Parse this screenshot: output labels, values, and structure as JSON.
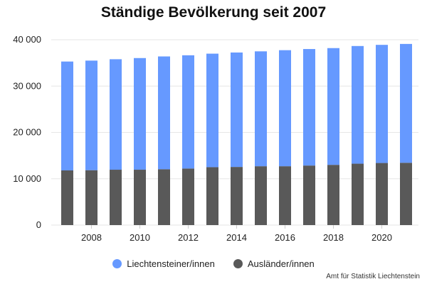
{
  "chart_data": {
    "type": "bar",
    "stacked": true,
    "title": "Ständige Bevölkerung seit 2007",
    "xlabel": "",
    "ylabel": "",
    "categories": [
      2007,
      2008,
      2009,
      2010,
      2011,
      2012,
      2013,
      2014,
      2015,
      2016,
      2017,
      2018,
      2019,
      2020,
      2021
    ],
    "x_tick_labels": [
      "2008",
      "2010",
      "2012",
      "2014",
      "2016",
      "2018",
      "2020"
    ],
    "y_tick_labels": [
      "0",
      "10 000",
      "20 000",
      "30 000",
      "40 000"
    ],
    "ylim": [
      0,
      40000
    ],
    "grid": true,
    "legend_position": "bottom",
    "series": [
      {
        "name": "Ausländer/innen",
        "color": "#595959",
        "values": [
          11800,
          11850,
          11950,
          11950,
          12050,
          12200,
          12500,
          12550,
          12700,
          12700,
          12850,
          13000,
          13250,
          13400,
          13450
        ]
      },
      {
        "name": "Liechtensteiner/innen",
        "color": "#6699ff",
        "values": [
          23500,
          23650,
          23850,
          24100,
          24350,
          24450,
          24500,
          24700,
          24800,
          25050,
          25150,
          25200,
          25400,
          25500,
          25650
        ]
      }
    ]
  },
  "source": "Amt für Statistik Liechtenstein"
}
